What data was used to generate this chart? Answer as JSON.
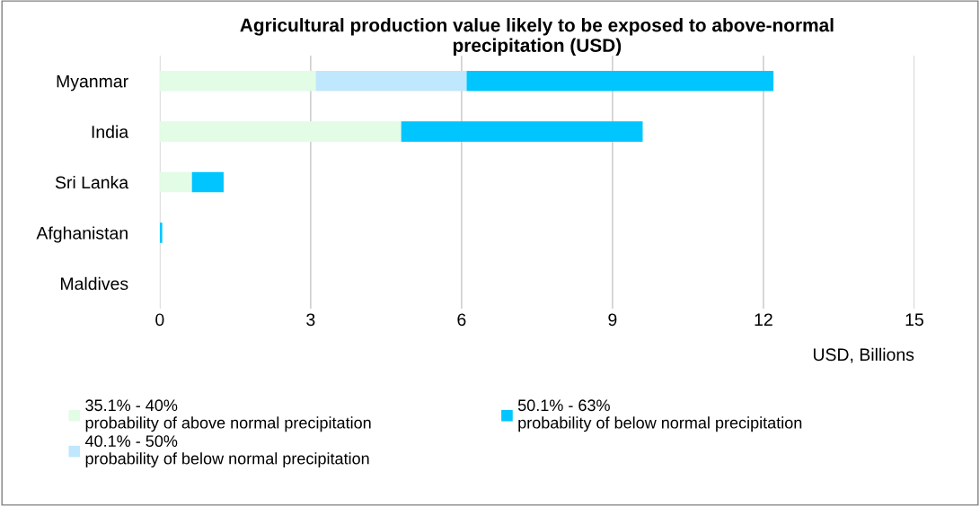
{
  "chart_data": {
    "type": "bar",
    "orientation": "horizontal",
    "stacked": true,
    "title": "Agricultural production value likely to be exposed to above-normal\nprecipitation (USD)",
    "xlabel": "USD, Billions",
    "categories": [
      "Myanmar",
      "India",
      "Sri Lanka",
      "Afghanistan",
      "Maldives"
    ],
    "series": [
      {
        "name": "35.1% - 40%\nprobability of above normal precipitation",
        "color": "#e2fce6",
        "values": [
          3.1,
          4.8,
          0.64,
          0.0,
          0
        ]
      },
      {
        "name": "40.1% - 50%\nprobability of below normal precipitation",
        "color": "#bfe7fd",
        "values": [
          3.0,
          0,
          0,
          0,
          0
        ]
      },
      {
        "name": "50.1% - 63%\nprobability of below normal precipitation",
        "color": "#00c5ff",
        "values": [
          6.1,
          4.8,
          0.63,
          0.05,
          0
        ]
      }
    ],
    "xlim": [
      0,
      15
    ],
    "xticks": [
      0,
      3,
      6,
      9,
      12,
      15
    ],
    "grid": "x",
    "legend": "bottom"
  }
}
